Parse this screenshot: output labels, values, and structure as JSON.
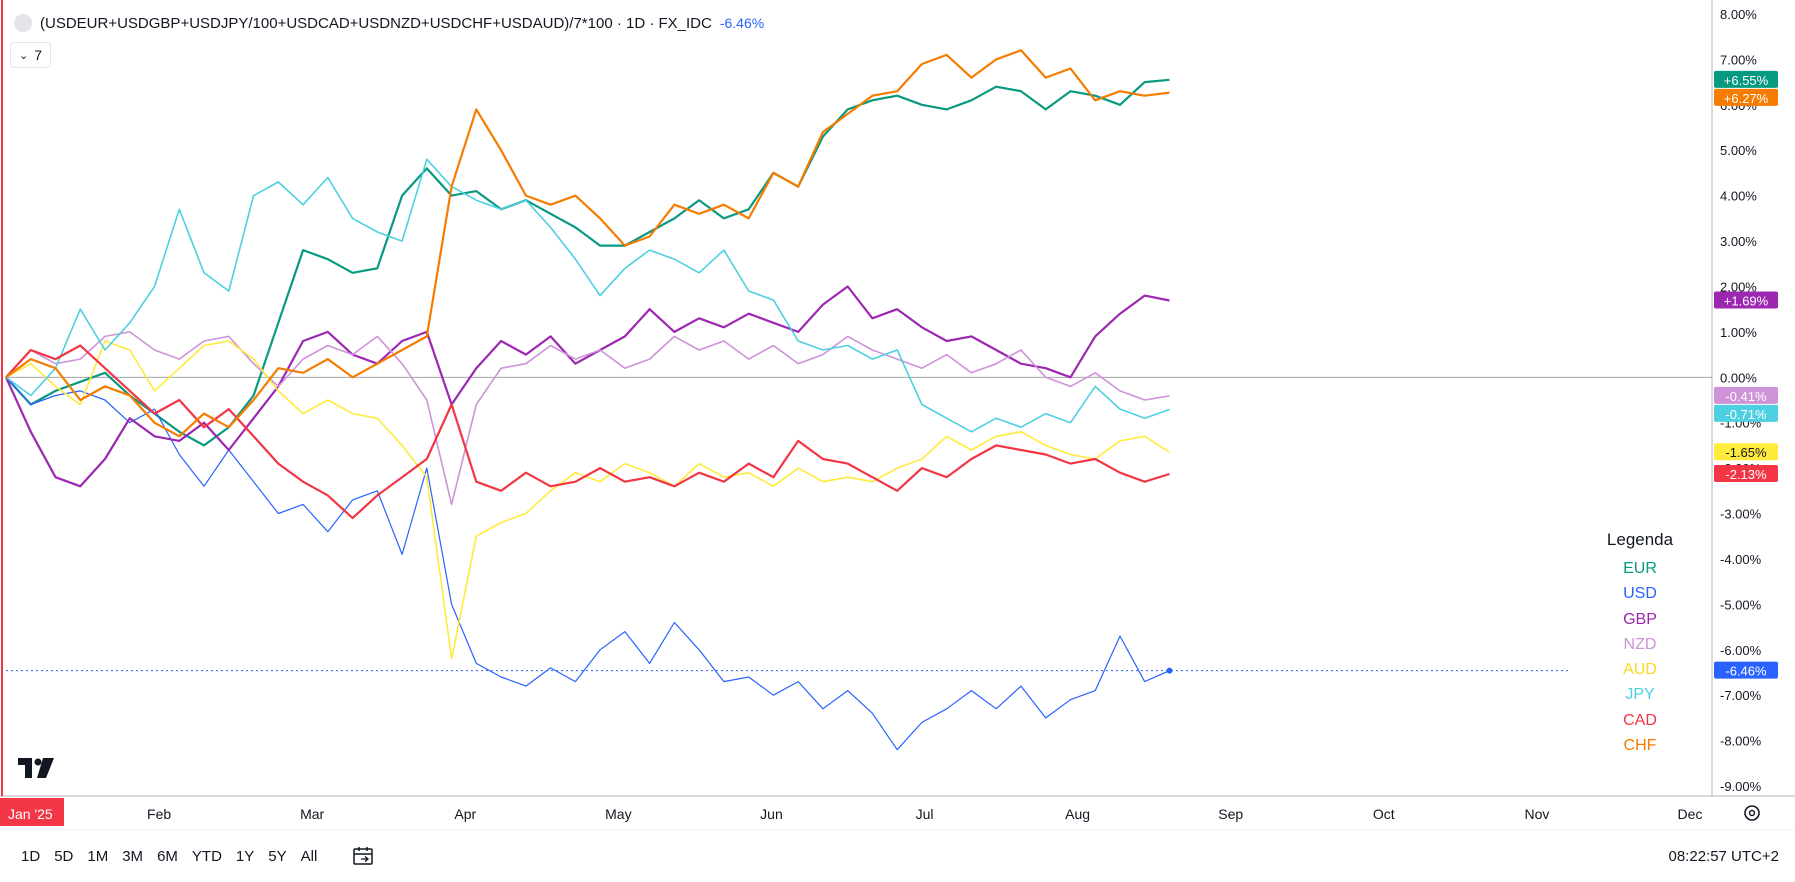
{
  "header": {
    "symbol": "(USDEUR+USDGBP+USDJPY/100+USDCAD+USDNZD+USDCHF+USDAUD)/7*100 · 1D · FX_IDC",
    "change": "-6.46%",
    "collapse_count": "7"
  },
  "chart_data": {
    "type": "line",
    "y_unit": "percent",
    "ylim": [
      -9.0,
      8.0
    ],
    "y_ticks": [
      "8.00%",
      "7.00%",
      "6.00%",
      "5.00%",
      "4.00%",
      "3.00%",
      "2.00%",
      "1.00%",
      "0.00%",
      "-1.00%",
      "-2.00%",
      "-3.00%",
      "-4.00%",
      "-5.00%",
      "-6.00%",
      "-7.00%",
      "-8.00%",
      "-9.00%"
    ],
    "y_tick_values": [
      8,
      7,
      6,
      5,
      4,
      3,
      2,
      1,
      0,
      -1,
      -2,
      -3,
      -4,
      -5,
      -6,
      -7,
      -8,
      -9
    ],
    "x_ticks": [
      "Jan '25",
      "Feb",
      "Mar",
      "Apr",
      "May",
      "Jun",
      "Jul",
      "Aug",
      "Sep",
      "Oct",
      "Nov",
      "Dec"
    ],
    "x_tick_months": [
      0,
      1,
      2,
      3,
      4,
      5,
      6,
      7,
      8,
      9,
      10,
      11
    ],
    "x_end_month": 7.6,
    "series": [
      {
        "name": "EUR",
        "color": "#089981",
        "width": 2.2,
        "last_label": "+6.55%",
        "last": 6.55,
        "values": [
          0,
          -0.6,
          -0.3,
          -0.1,
          0.1,
          -0.4,
          -0.8,
          -1.2,
          -1.5,
          -1.1,
          -0.4,
          1.2,
          2.8,
          2.6,
          2.3,
          2.4,
          4.0,
          4.6,
          4.0,
          4.1,
          3.7,
          3.9,
          3.6,
          3.3,
          2.9,
          2.9,
          3.2,
          3.5,
          3.9,
          3.5,
          3.7,
          4.5,
          4.2,
          5.3,
          5.9,
          6.1,
          6.2,
          6.0,
          5.9,
          6.1,
          6.4,
          6.3,
          5.9,
          6.3,
          6.2,
          6.0,
          6.5,
          6.55
        ]
      },
      {
        "name": "USD",
        "color": "#2962ff",
        "width": 1.2,
        "last_label": "-6.46%",
        "last": -6.46,
        "values": [
          0,
          -0.6,
          -0.4,
          -0.3,
          -0.5,
          -1.0,
          -0.7,
          -1.7,
          -2.4,
          -1.6,
          -2.3,
          -3.0,
          -2.8,
          -3.4,
          -2.7,
          -2.5,
          -3.9,
          -2.0,
          -5.0,
          -6.3,
          -6.6,
          -6.8,
          -6.4,
          -6.7,
          -6.0,
          -5.6,
          -6.3,
          -5.4,
          -6.0,
          -6.7,
          -6.6,
          -7.0,
          -6.7,
          -7.3,
          -6.9,
          -7.4,
          -8.2,
          -7.6,
          -7.3,
          -6.9,
          -7.3,
          -6.8,
          -7.5,
          -7.1,
          -6.9,
          -5.7,
          -6.7,
          -6.46
        ]
      },
      {
        "name": "GBP",
        "color": "#9c27b0",
        "width": 2.2,
        "last_label": "+1.69%",
        "last": 1.69,
        "values": [
          0,
          -1.2,
          -2.2,
          -2.4,
          -1.8,
          -0.9,
          -1.3,
          -1.4,
          -1.0,
          -1.6,
          -0.9,
          -0.2,
          0.8,
          1.0,
          0.5,
          0.3,
          0.8,
          1.0,
          -0.6,
          0.2,
          0.8,
          0.5,
          0.9,
          0.3,
          0.6,
          0.9,
          1.5,
          1.0,
          1.3,
          1.1,
          1.4,
          1.2,
          1.0,
          1.6,
          2.0,
          1.3,
          1.5,
          1.1,
          0.8,
          0.9,
          0.6,
          0.3,
          0.2,
          0.0,
          0.9,
          1.4,
          1.8,
          1.69
        ]
      },
      {
        "name": "NZD",
        "color": "#ce93d8",
        "width": 1.6,
        "last_label": "-0.41%",
        "last": -0.41,
        "values": [
          0,
          0.6,
          0.3,
          0.4,
          0.9,
          1.0,
          0.6,
          0.4,
          0.8,
          0.9,
          0.3,
          -0.2,
          0.4,
          0.7,
          0.5,
          0.9,
          0.3,
          -0.5,
          -2.8,
          -0.6,
          0.2,
          0.3,
          0.7,
          0.4,
          0.6,
          0.2,
          0.4,
          0.9,
          0.6,
          0.8,
          0.4,
          0.7,
          0.3,
          0.5,
          0.9,
          0.6,
          0.4,
          0.2,
          0.5,
          0.1,
          0.3,
          0.6,
          0.0,
          -0.2,
          0.1,
          -0.3,
          -0.5,
          -0.41
        ]
      },
      {
        "name": "AUD",
        "color": "#ffeb3b",
        "width": 1.6,
        "last_label": "-1.65%",
        "last": -1.65,
        "values": [
          0,
          0.3,
          -0.2,
          -0.6,
          0.8,
          0.6,
          -0.3,
          0.2,
          0.7,
          0.8,
          0.4,
          -0.3,
          -0.8,
          -0.5,
          -0.8,
          -0.9,
          -1.5,
          -2.2,
          -6.2,
          -3.5,
          -3.2,
          -3.0,
          -2.5,
          -2.1,
          -2.3,
          -1.9,
          -2.1,
          -2.4,
          -1.9,
          -2.2,
          -2.1,
          -2.4,
          -2.0,
          -2.3,
          -2.2,
          -2.3,
          -2.0,
          -1.8,
          -1.3,
          -1.6,
          -1.3,
          -1.2,
          -1.5,
          -1.7,
          -1.8,
          -1.4,
          -1.3,
          -1.65
        ]
      },
      {
        "name": "JPY",
        "color": "#4dd0e1",
        "width": 1.6,
        "last_label": "-0.71%",
        "last": -0.71,
        "values": [
          0,
          -0.4,
          0.2,
          1.5,
          0.6,
          1.2,
          2.0,
          3.7,
          2.3,
          1.9,
          4.0,
          4.3,
          3.8,
          4.4,
          3.5,
          3.2,
          3.0,
          4.8,
          4.2,
          3.9,
          3.7,
          3.9,
          3.3,
          2.6,
          1.8,
          2.4,
          2.8,
          2.6,
          2.3,
          2.8,
          1.9,
          1.7,
          0.8,
          0.6,
          0.7,
          0.4,
          0.6,
          -0.6,
          -0.9,
          -1.2,
          -0.9,
          -1.1,
          -0.8,
          -1.0,
          -0.2,
          -0.7,
          -0.9,
          -0.71
        ]
      },
      {
        "name": "CAD",
        "color": "#f23645",
        "width": 2.2,
        "last_label": "-2.13%",
        "last": -2.13,
        "values": [
          0,
          0.6,
          0.4,
          0.7,
          0.2,
          -0.3,
          -0.8,
          -0.5,
          -1.1,
          -0.7,
          -1.3,
          -1.9,
          -2.3,
          -2.6,
          -3.1,
          -2.6,
          -2.2,
          -1.8,
          -0.6,
          -2.3,
          -2.5,
          -2.1,
          -2.4,
          -2.3,
          -2.0,
          -2.3,
          -2.2,
          -2.4,
          -2.1,
          -2.3,
          -1.9,
          -2.2,
          -1.4,
          -1.8,
          -1.9,
          -2.2,
          -2.5,
          -2.0,
          -2.2,
          -1.8,
          -1.5,
          -1.6,
          -1.7,
          -1.9,
          -1.8,
          -2.1,
          -2.3,
          -2.13
        ]
      },
      {
        "name": "CHF",
        "color": "#f57c00",
        "width": 2.2,
        "last_label": "+6.27%",
        "last": 6.27,
        "values": [
          0,
          0.4,
          0.2,
          -0.5,
          -0.2,
          -0.4,
          -1.0,
          -1.3,
          -0.8,
          -1.1,
          -0.5,
          0.2,
          0.1,
          0.4,
          0.0,
          0.3,
          0.6,
          0.9,
          4.2,
          5.9,
          5.0,
          4.0,
          3.8,
          4.0,
          3.5,
          2.9,
          3.1,
          3.8,
          3.6,
          3.8,
          3.5,
          4.5,
          4.2,
          5.4,
          5.8,
          6.2,
          6.3,
          6.9,
          7.1,
          6.6,
          7.0,
          7.2,
          6.6,
          6.8,
          6.1,
          6.3,
          6.2,
          6.27
        ]
      }
    ],
    "zero_line": 0,
    "current_value": -6.46,
    "legend": {
      "title": "Legenda",
      "placement": "bottom-right"
    }
  },
  "bottom": {
    "ranges": [
      "1D",
      "5D",
      "1M",
      "3M",
      "6M",
      "YTD",
      "1Y",
      "5Y",
      "All"
    ],
    "clock": "08:22:57 UTC+2"
  }
}
